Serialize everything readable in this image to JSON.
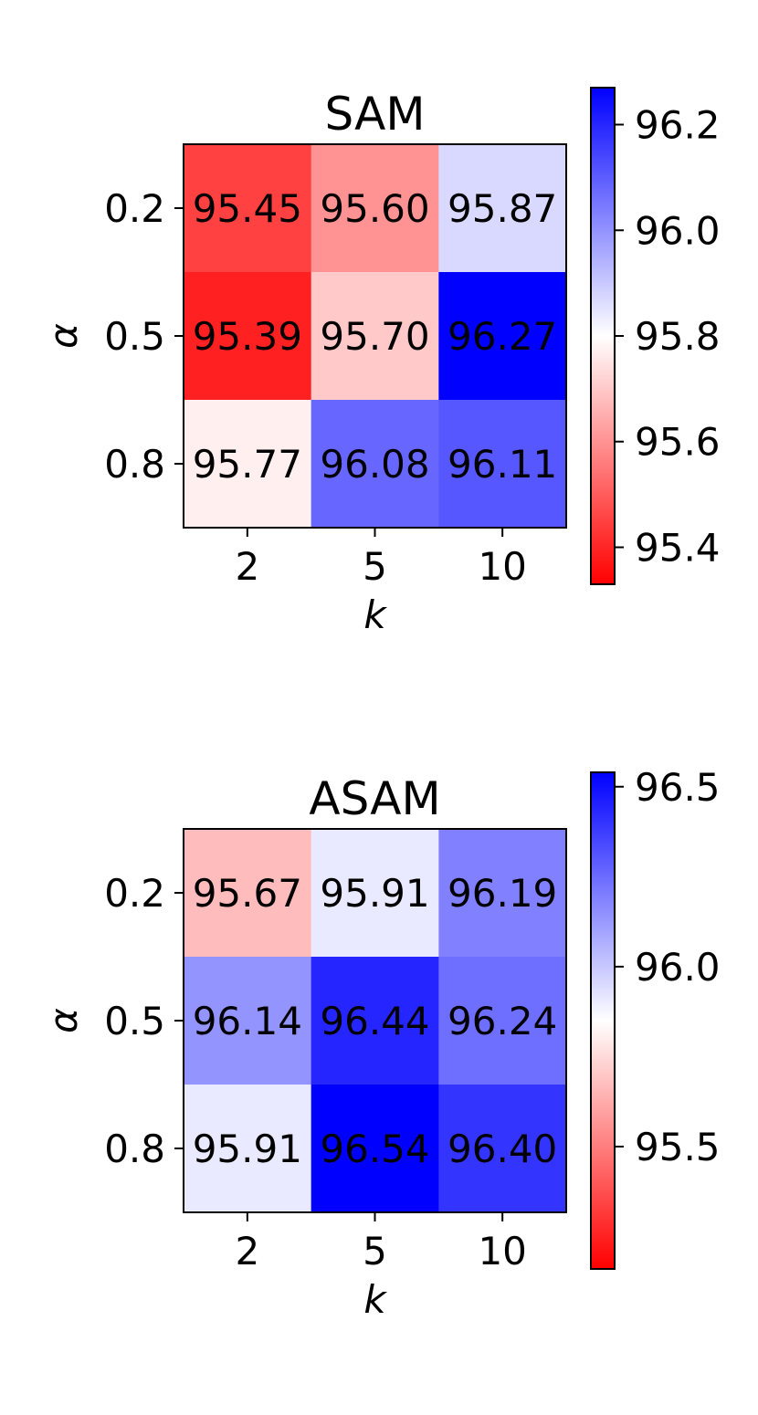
{
  "chart_data": [
    {
      "type": "heatmap",
      "title": "SAM",
      "xlabel": "k",
      "ylabel": "α",
      "x_categories": [
        "2",
        "5",
        "10"
      ],
      "y_categories": [
        "0.2",
        "0.5",
        "0.8"
      ],
      "values": [
        [
          95.45,
          95.6,
          95.87
        ],
        [
          95.39,
          95.7,
          96.27
        ],
        [
          95.77,
          96.08,
          96.11
        ]
      ],
      "cell_labels": [
        [
          "95.45",
          "95.60",
          "95.87"
        ],
        [
          "95.39",
          "95.70",
          "96.27"
        ],
        [
          "95.77",
          "96.08",
          "96.11"
        ]
      ],
      "colormap": "bwr_r",
      "color_low": "#ff0000",
      "color_mid": "#ffffff",
      "color_high": "#0000ff",
      "color_range": [
        95.33,
        96.27
      ],
      "colorbar_ticks": [
        "95.4",
        "95.6",
        "95.8",
        "96.0",
        "96.2"
      ],
      "colorbar_tick_values": [
        95.4,
        95.6,
        95.8,
        96.0,
        96.2
      ]
    },
    {
      "type": "heatmap",
      "title": "ASAM",
      "xlabel": "k",
      "ylabel": "α",
      "x_categories": [
        "2",
        "5",
        "10"
      ],
      "y_categories": [
        "0.2",
        "0.5",
        "0.8"
      ],
      "values": [
        [
          95.67,
          95.91,
          96.19
        ],
        [
          96.14,
          96.44,
          96.24
        ],
        [
          95.91,
          96.54,
          96.4
        ]
      ],
      "cell_labels": [
        [
          "95.67",
          "95.91",
          "96.19"
        ],
        [
          "96.14",
          "96.44",
          "96.24"
        ],
        [
          "95.91",
          "96.54",
          "96.40"
        ]
      ],
      "colormap": "bwr_r",
      "color_low": "#ff0000",
      "color_mid": "#ffffff",
      "color_high": "#0000ff",
      "color_range": [
        95.16,
        96.54
      ],
      "colorbar_ticks": [
        "95.5",
        "96.0",
        "96.5"
      ],
      "colorbar_tick_values": [
        95.5,
        96.0,
        96.5
      ]
    }
  ]
}
